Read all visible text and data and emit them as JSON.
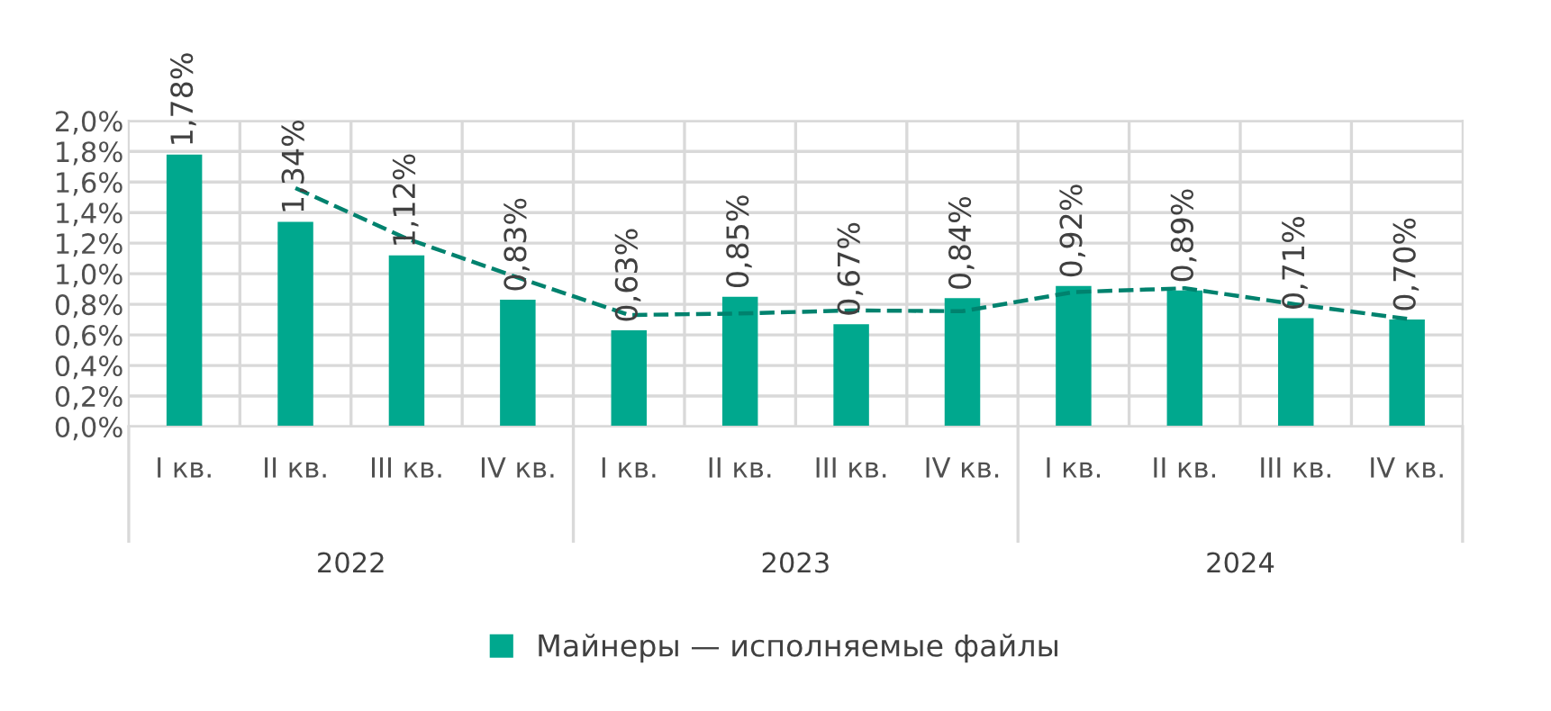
{
  "chart_data": {
    "type": "bar",
    "categories": [
      "I кв.",
      "II кв.",
      "III кв.",
      "IV кв.",
      "I кв.",
      "II кв.",
      "III кв.",
      "IV кв.",
      "I кв.",
      "II кв.",
      "III кв.",
      "IV кв."
    ],
    "series": [
      {
        "name": "Майнеры — исполняемые файлы",
        "color": "#00a88e",
        "values": [
          1.78,
          1.34,
          1.12,
          0.83,
          0.63,
          0.85,
          0.67,
          0.84,
          0.92,
          0.89,
          0.71,
          0.7
        ],
        "value_labels": [
          "1,78%",
          "1,34%",
          "1,12%",
          "0,83%",
          "0,63%",
          "0,85%",
          "0,67%",
          "0,84%",
          "0,92%",
          "0,89%",
          "0,71%",
          "0,70%"
        ]
      },
      {
        "type": "line",
        "color": "#00826e",
        "line_style": "dashed",
        "values": [
          null,
          1.56,
          1.23,
          0.975,
          0.73,
          0.74,
          0.76,
          0.755,
          0.88,
          0.905,
          0.8,
          0.705
        ]
      }
    ],
    "ylim": [
      0,
      2.0
    ],
    "yticks": [
      {
        "value": 0,
        "label": "0,0%"
      },
      {
        "value": 0.2,
        "label": "0,2%"
      },
      {
        "value": 0.4,
        "label": "0,4%"
      },
      {
        "value": 0.6,
        "label": "0,6%"
      },
      {
        "value": 0.8,
        "label": "0,8%"
      },
      {
        "value": 1.0,
        "label": "1,0%"
      },
      {
        "value": 1.2,
        "label": "1,2%"
      },
      {
        "value": 1.4,
        "label": "1,4%"
      },
      {
        "value": 1.6,
        "label": "1,6%"
      },
      {
        "value": 1.8,
        "label": "1,8%"
      },
      {
        "value": 2.0,
        "label": "2,0%"
      }
    ],
    "annotations": [
      "2022",
      "2023",
      "2024"
    ],
    "grid": true,
    "legend": "bottom"
  }
}
